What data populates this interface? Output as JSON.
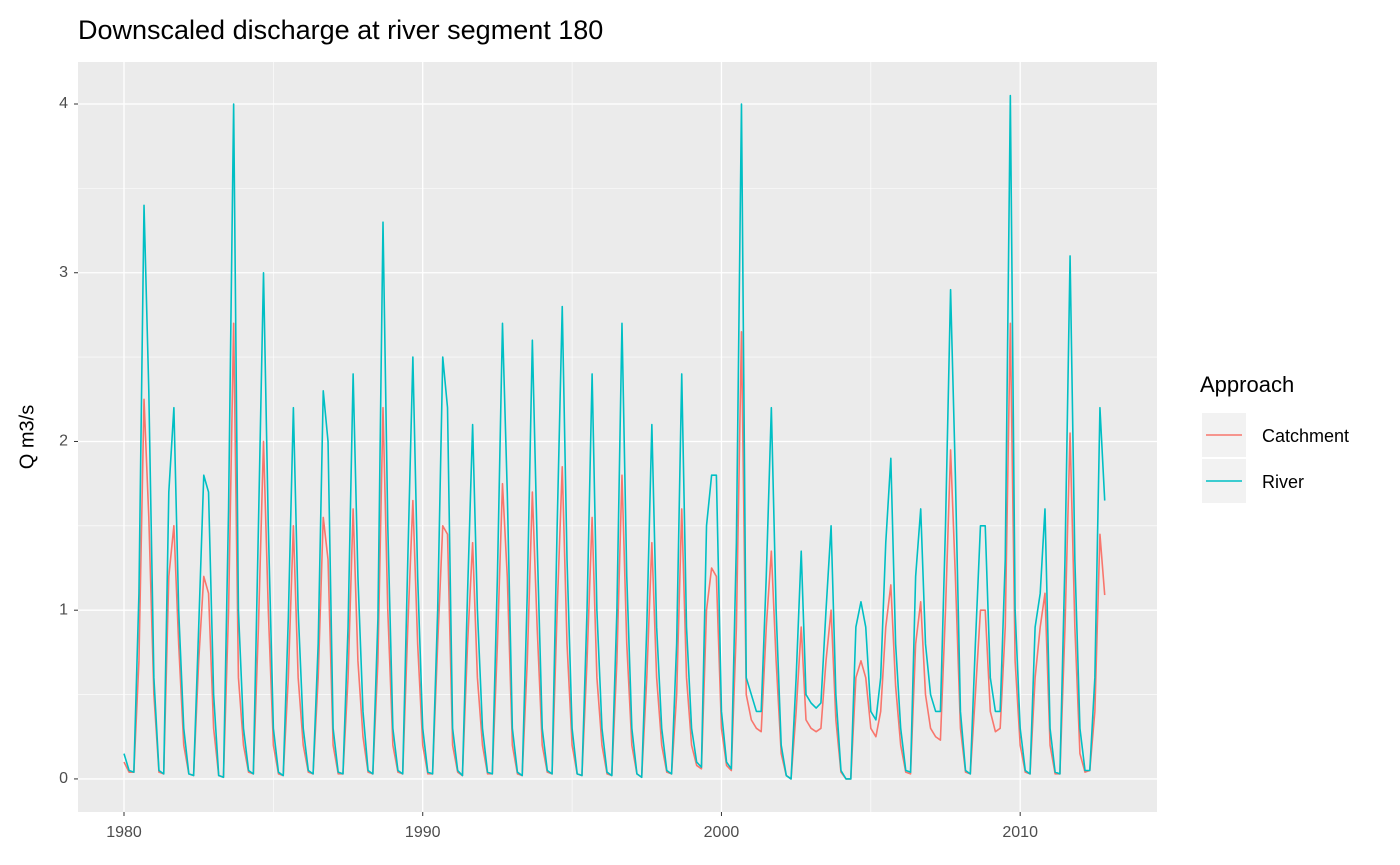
{
  "chart_data": {
    "type": "line",
    "title": "Downscaled discharge at river segment 180",
    "y_label": "Q m3/s",
    "legend_title": "Approach",
    "legend_position": "right",
    "grid": true,
    "xlim": [
      1978.46,
      2014.58
    ],
    "xticks": [
      1980,
      1990,
      2000,
      2010
    ],
    "ylim": [
      -0.196,
      4.249
    ],
    "yticks": [
      0,
      1,
      2,
      3,
      4
    ],
    "x": [
      1980,
      1980.17,
      1980.33,
      1980.5,
      1980.67,
      1980.83,
      1981,
      1981.17,
      1981.33,
      1981.5,
      1981.67,
      1981.83,
      1982,
      1982.17,
      1982.33,
      1982.5,
      1982.67,
      1982.83,
      1983,
      1983.17,
      1983.33,
      1983.5,
      1983.67,
      1983.83,
      1984,
      1984.17,
      1984.33,
      1984.5,
      1984.67,
      1984.83,
      1985,
      1985.17,
      1985.33,
      1985.5,
      1985.67,
      1985.83,
      1986,
      1986.17,
      1986.33,
      1986.5,
      1986.67,
      1986.83,
      1987,
      1987.17,
      1987.33,
      1987.5,
      1987.67,
      1987.83,
      1988,
      1988.17,
      1988.33,
      1988.5,
      1988.67,
      1988.83,
      1989,
      1989.17,
      1989.33,
      1989.5,
      1989.67,
      1989.83,
      1990,
      1990.17,
      1990.33,
      1990.5,
      1990.67,
      1990.83,
      1991,
      1991.17,
      1991.33,
      1991.5,
      1991.67,
      1991.83,
      1992,
      1992.17,
      1992.33,
      1992.5,
      1992.67,
      1992.83,
      1993,
      1993.17,
      1993.33,
      1993.5,
      1993.67,
      1993.83,
      1994,
      1994.17,
      1994.33,
      1994.5,
      1994.67,
      1994.83,
      1995,
      1995.17,
      1995.33,
      1995.5,
      1995.67,
      1995.83,
      1996,
      1996.17,
      1996.33,
      1996.5,
      1996.67,
      1996.83,
      1997,
      1997.17,
      1997.33,
      1997.5,
      1997.67,
      1997.83,
      1998,
      1998.17,
      1998.33,
      1998.5,
      1998.67,
      1998.83,
      1999,
      1999.17,
      1999.33,
      1999.5,
      1999.67,
      1999.83,
      2000,
      2000.17,
      2000.33,
      2000.5,
      2000.67,
      2000.83,
      2001,
      2001.17,
      2001.33,
      2001.5,
      2001.67,
      2001.83,
      2002,
      2002.17,
      2002.33,
      2002.5,
      2002.67,
      2002.83,
      2003,
      2003.17,
      2003.33,
      2003.5,
      2003.67,
      2003.83,
      2004,
      2004.17,
      2004.33,
      2004.5,
      2004.67,
      2004.83,
      2005,
      2005.17,
      2005.33,
      2005.5,
      2005.67,
      2005.83,
      2006,
      2006.17,
      2006.33,
      2006.5,
      2006.67,
      2006.83,
      2007,
      2007.17,
      2007.33,
      2007.5,
      2007.67,
      2007.83,
      2008,
      2008.17,
      2008.33,
      2008.5,
      2008.67,
      2008.83,
      2009,
      2009.17,
      2009.33,
      2009.5,
      2009.67,
      2009.83,
      2010,
      2010.17,
      2010.33,
      2010.5,
      2010.67,
      2010.83,
      2011,
      2011.17,
      2011.33,
      2011.5,
      2011.67,
      2011.83,
      2012,
      2012.17,
      2012.33,
      2012.5,
      2012.67,
      2012.83
    ],
    "series": [
      {
        "name": "Catchment",
        "color": "#F8766D",
        "values": [
          0.1,
          0.04,
          0.04,
          0.7,
          2.25,
          1.55,
          0.5,
          0.04,
          0.03,
          1.2,
          1.5,
          0.8,
          0.2,
          0.03,
          0.02,
          0.7,
          1.2,
          1.1,
          0.3,
          0.02,
          0.01,
          1.0,
          2.7,
          0.6,
          0.2,
          0.04,
          0.03,
          0.9,
          2.0,
          1.0,
          0.2,
          0.03,
          0.02,
          0.6,
          1.5,
          0.6,
          0.2,
          0.04,
          0.03,
          0.6,
          1.55,
          1.3,
          0.2,
          0.03,
          0.03,
          0.6,
          1.6,
          0.7,
          0.25,
          0.04,
          0.03,
          0.7,
          2.2,
          1.0,
          0.2,
          0.04,
          0.03,
          0.9,
          1.65,
          0.8,
          0.2,
          0.03,
          0.03,
          0.8,
          1.5,
          1.45,
          0.2,
          0.04,
          0.02,
          0.8,
          1.4,
          0.6,
          0.2,
          0.03,
          0.03,
          0.8,
          1.75,
          1.2,
          0.2,
          0.03,
          0.02,
          0.7,
          1.7,
          0.9,
          0.2,
          0.04,
          0.03,
          1.0,
          1.85,
          0.8,
          0.2,
          0.03,
          0.02,
          0.7,
          1.55,
          0.6,
          0.2,
          0.03,
          0.02,
          0.7,
          1.8,
          0.8,
          0.2,
          0.03,
          0.01,
          0.6,
          1.4,
          0.6,
          0.2,
          0.04,
          0.03,
          0.5,
          1.6,
          0.6,
          0.2,
          0.08,
          0.06,
          1.0,
          1.25,
          1.2,
          0.3,
          0.08,
          0.05,
          0.9,
          2.65,
          0.5,
          0.35,
          0.3,
          0.28,
          0.9,
          1.35,
          0.7,
          0.15,
          0.02,
          0.0,
          0.4,
          0.9,
          0.35,
          0.3,
          0.28,
          0.3,
          0.7,
          1.0,
          0.35,
          0.04,
          0.0,
          0.0,
          0.6,
          0.7,
          0.6,
          0.3,
          0.25,
          0.4,
          0.9,
          1.15,
          0.55,
          0.2,
          0.04,
          0.03,
          0.8,
          1.05,
          0.5,
          0.3,
          0.25,
          0.23,
          1.0,
          1.95,
          1.2,
          0.3,
          0.04,
          0.03,
          0.5,
          1.0,
          1.0,
          0.4,
          0.28,
          0.3,
          0.9,
          2.7,
          0.7,
          0.2,
          0.04,
          0.03,
          0.6,
          0.9,
          1.1,
          0.2,
          0.03,
          0.03,
          0.9,
          2.05,
          0.9,
          0.15,
          0.04,
          0.05,
          0.4,
          1.45,
          1.09
        ]
      },
      {
        "name": "River",
        "color": "#00BFC4",
        "values": [
          0.15,
          0.05,
          0.04,
          1.1,
          3.4,
          2.3,
          0.6,
          0.05,
          0.03,
          1.7,
          2.2,
          1.0,
          0.3,
          0.03,
          0.02,
          0.9,
          1.8,
          1.7,
          0.5,
          0.02,
          0.01,
          1.6,
          4.0,
          1.0,
          0.3,
          0.05,
          0.03,
          1.5,
          3.0,
          1.5,
          0.3,
          0.04,
          0.02,
          0.95,
          2.2,
          1.0,
          0.3,
          0.05,
          0.03,
          0.8,
          2.3,
          2.0,
          0.3,
          0.04,
          0.03,
          0.9,
          2.4,
          1.2,
          0.4,
          0.05,
          0.03,
          0.95,
          3.3,
          1.5,
          0.3,
          0.05,
          0.03,
          1.3,
          2.5,
          1.2,
          0.3,
          0.04,
          0.03,
          1.0,
          2.5,
          2.2,
          0.3,
          0.05,
          0.02,
          1.1,
          2.1,
          1.0,
          0.3,
          0.04,
          0.03,
          1.2,
          2.7,
          1.7,
          0.3,
          0.04,
          0.02,
          1.1,
          2.6,
          1.4,
          0.3,
          0.05,
          0.03,
          1.5,
          2.8,
          1.3,
          0.3,
          0.03,
          0.02,
          1.0,
          2.4,
          1.0,
          0.3,
          0.04,
          0.02,
          1.0,
          2.7,
          1.2,
          0.3,
          0.03,
          0.01,
          0.9,
          2.1,
          0.9,
          0.3,
          0.05,
          0.03,
          0.8,
          2.4,
          0.9,
          0.3,
          0.1,
          0.07,
          1.5,
          1.8,
          1.8,
          0.4,
          0.1,
          0.06,
          1.4,
          4.0,
          0.6,
          0.5,
          0.4,
          0.4,
          1.2,
          2.2,
          1.0,
          0.2,
          0.02,
          0.0,
          0.6,
          1.35,
          0.5,
          0.45,
          0.42,
          0.45,
          1.0,
          1.5,
          0.5,
          0.05,
          0.0,
          0.0,
          0.9,
          1.05,
          0.9,
          0.4,
          0.35,
          0.6,
          1.4,
          1.9,
          0.8,
          0.3,
          0.05,
          0.04,
          1.2,
          1.6,
          0.8,
          0.5,
          0.4,
          0.4,
          1.5,
          2.9,
          1.8,
          0.4,
          0.05,
          0.03,
          0.8,
          1.5,
          1.5,
          0.6,
          0.4,
          0.4,
          1.3,
          4.05,
          1.0,
          0.3,
          0.05,
          0.03,
          0.9,
          1.1,
          1.6,
          0.3,
          0.04,
          0.03,
          1.3,
          3.1,
          1.3,
          0.3,
          0.05,
          0.05,
          0.6,
          2.2,
          1.65
        ]
      }
    ]
  }
}
